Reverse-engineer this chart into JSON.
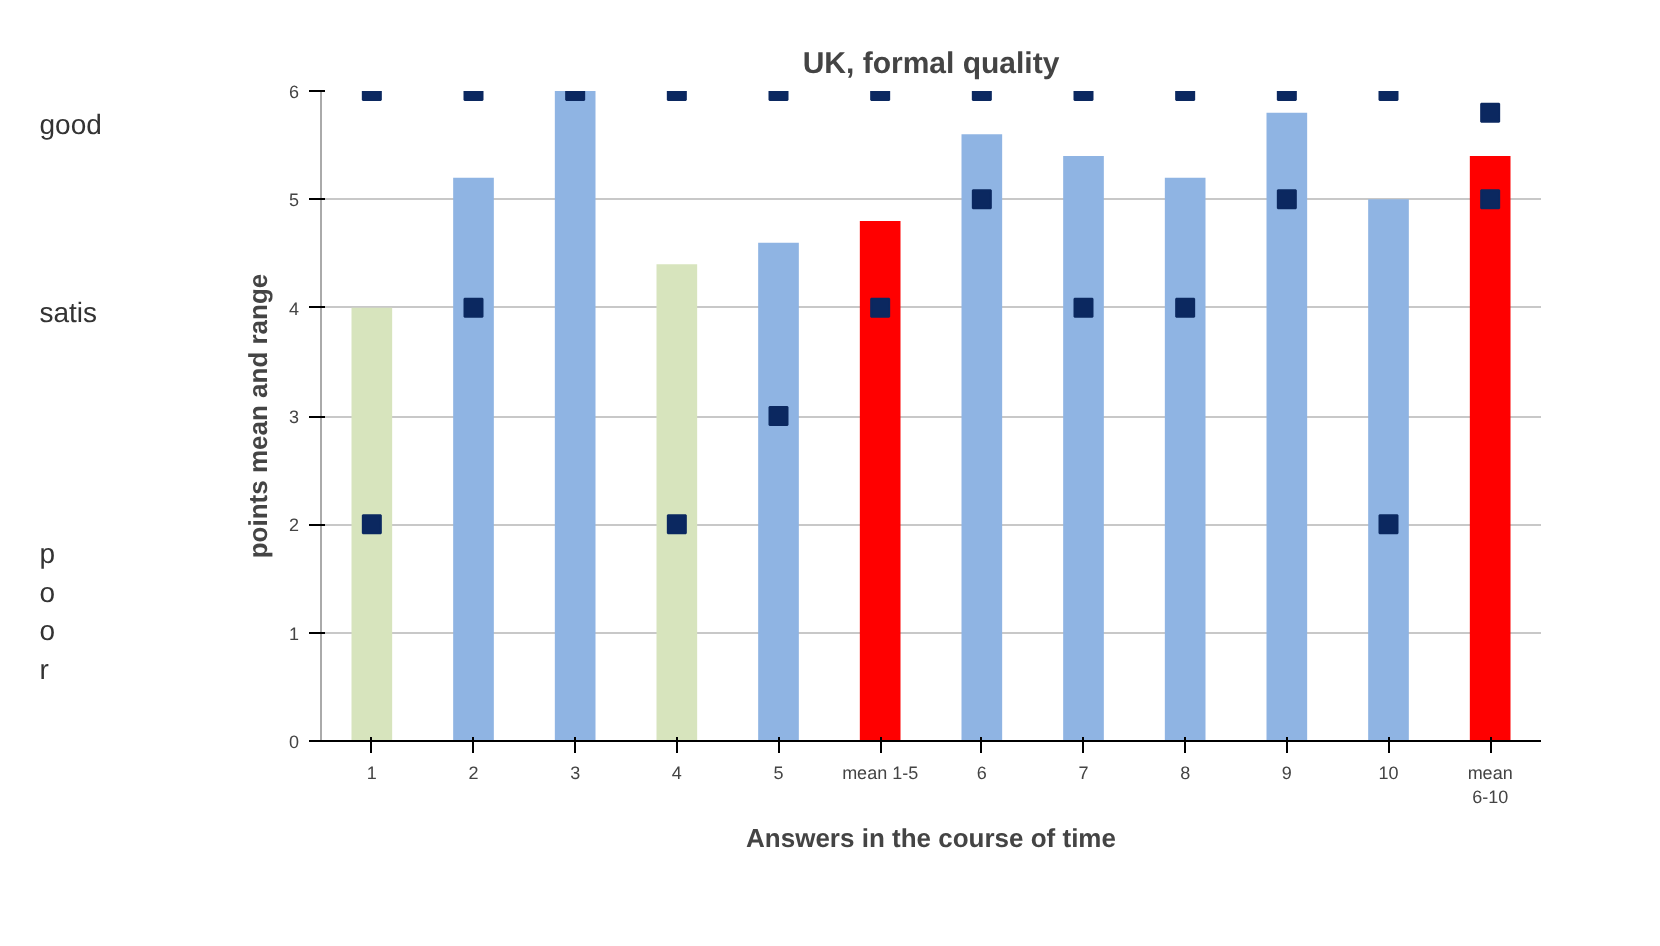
{
  "chart_data": {
    "type": "bar",
    "title": "UK, formal quality",
    "xlabel": "Answers in the course of time",
    "ylabel": "points mean and range",
    "categories": [
      "1",
      "2",
      "3",
      "4",
      "5",
      "mean 1-5",
      "6",
      "7",
      "8",
      "9",
      "10",
      "mean\n6-10"
    ],
    "ylim": [
      0,
      6
    ],
    "yticks": [
      0,
      1,
      2,
      3,
      4,
      5,
      6
    ],
    "grid": "y",
    "marker": "square",
    "series": [
      {
        "values": [
          4.0,
          5.2,
          6.0,
          4.4,
          4.6,
          4.8,
          5.6,
          5.4,
          5.2,
          5.8,
          5.0,
          5.4
        ],
        "colors": [
          "#d7e4bd",
          "#8fb4e3",
          "#8fb4e3",
          "#d7e4bd",
          "#8fb4e3",
          "#ff0000",
          "#8fb4e3",
          "#8fb4e3",
          "#8fb4e3",
          "#8fb4e3",
          "#8fb4e3",
          "#ff0000"
        ]
      },
      {
        "type": "scatter",
        "color": "#0b2860",
        "values": [
          6,
          6,
          6,
          6,
          6,
          6,
          6,
          6,
          6,
          6,
          6,
          5.8
        ]
      },
      {
        "type": "scatter",
        "color": "#0b2860",
        "values": [
          2,
          4,
          null,
          2,
          3,
          4,
          5,
          4,
          4,
          5,
          2,
          5
        ]
      }
    ],
    "annotations": [
      "good",
      "satis",
      "p\no\no\nr"
    ]
  }
}
